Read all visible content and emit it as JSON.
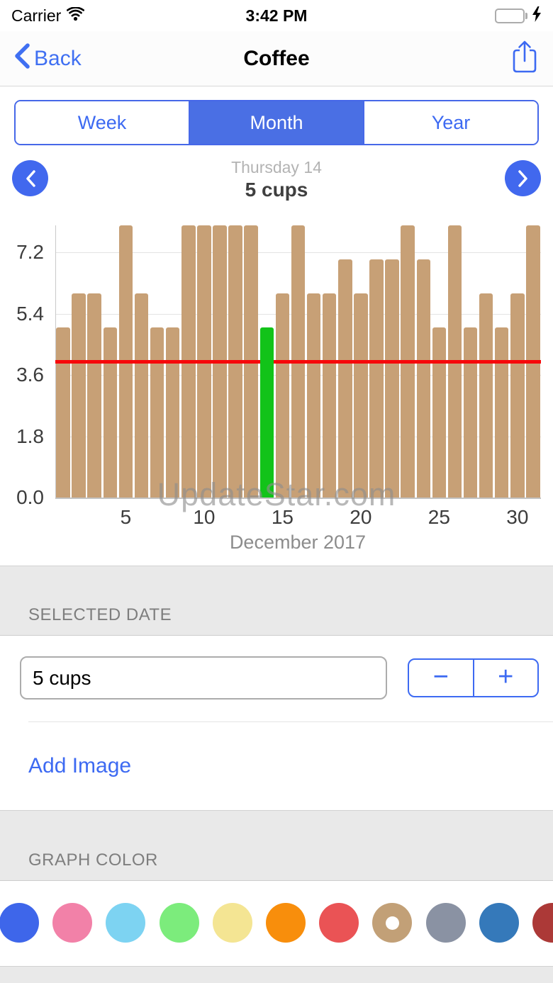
{
  "status_bar": {
    "carrier": "Carrier",
    "time": "3:42 PM"
  },
  "nav_bar": {
    "back_label": "Back",
    "title": "Coffee"
  },
  "range_tabs": {
    "options": [
      "Week",
      "Month",
      "Year"
    ],
    "selected": "Month"
  },
  "date_header": {
    "date_label": "Thursday 14",
    "value_label": "5 cups"
  },
  "chart_data": {
    "type": "bar",
    "title": "",
    "categories": [
      1,
      2,
      3,
      4,
      5,
      6,
      7,
      8,
      9,
      10,
      11,
      12,
      13,
      14,
      15,
      16,
      17,
      18,
      19,
      20,
      21,
      22,
      23,
      24,
      25,
      26,
      27,
      28,
      29,
      30,
      31
    ],
    "values": [
      5,
      6,
      6,
      5,
      8,
      6,
      5,
      5,
      8,
      8,
      8,
      8,
      8,
      5,
      6,
      8,
      6,
      6,
      7,
      6,
      7,
      7,
      8,
      7,
      5,
      8,
      5,
      6,
      5,
      6,
      8
    ],
    "selected_day": 14,
    "selected_value": 5,
    "ylim": [
      0,
      8
    ],
    "yticks": [
      "0.0",
      "1.8",
      "3.6",
      "5.4",
      "7.2"
    ],
    "xticks": [
      5,
      10,
      15,
      20,
      25,
      30
    ],
    "xlabel": "December 2017",
    "watermark": "UpdateStar.com",
    "grid": true,
    "legend": false,
    "bar_color": "#C7A076",
    "selected_bar_color": "#12C319",
    "reference_line": {
      "value": 4,
      "color": "#F7080A"
    }
  },
  "selected_date_section": {
    "header": "SELECTED DATE",
    "value": "5 cups",
    "stepper": {
      "minus": "−",
      "plus": "+"
    },
    "add_image_label": "Add Image"
  },
  "graph_color_section": {
    "header": "GRAPH COLOR",
    "selected_index": 7,
    "colors": [
      "#3E66EA",
      "#F281A8",
      "#7DD3F2",
      "#7CEC7C",
      "#F4E593",
      "#F88E0C",
      "#EA5355",
      "#C2A077",
      "#8A92A3",
      "#3579BA",
      "#AC3937"
    ]
  },
  "theme": {
    "accent_blue": "#3D6AF2",
    "selected_segment_blue": "#4A6FE4"
  }
}
